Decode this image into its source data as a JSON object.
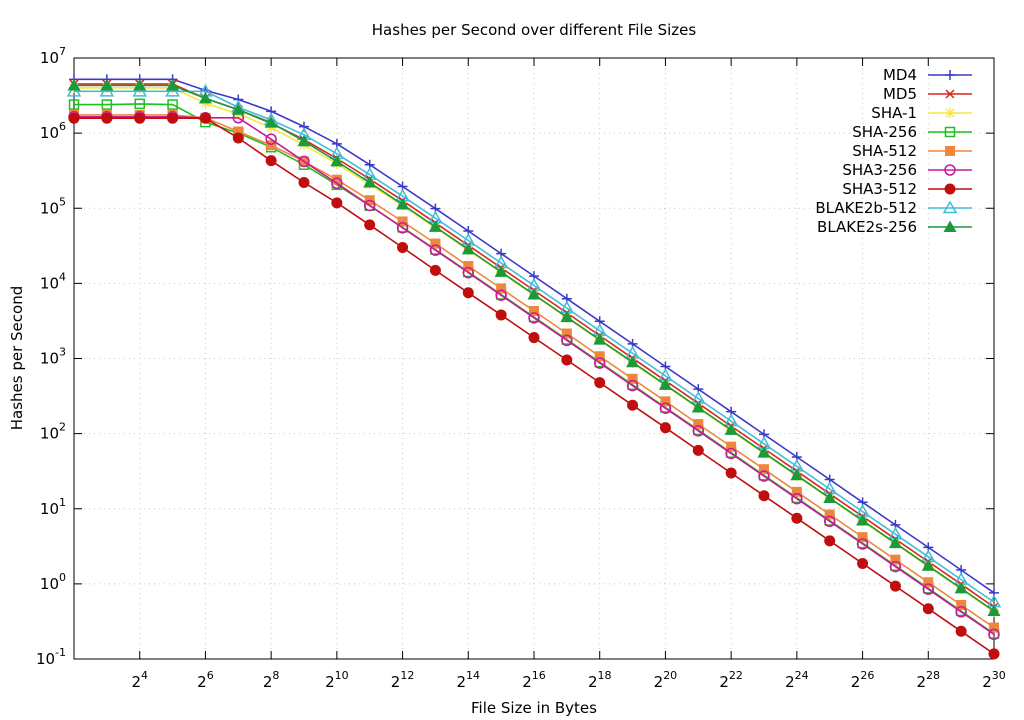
{
  "chart_data": {
    "type": "line",
    "title": "Hashes per Second over different File Sizes",
    "xlabel": "File Size in Bytes",
    "ylabel": "Hashes per Second",
    "x_scale": "log2",
    "y_scale": "log10",
    "x": [
      4,
      8,
      16,
      32,
      64,
      128,
      256,
      512,
      1024,
      2048,
      4096,
      8192,
      16384,
      32768,
      65536,
      131072,
      262144,
      524288,
      1048576,
      2097152,
      4194304,
      8388608,
      16777216,
      33554432,
      67108864,
      134217728,
      268435456,
      536870912,
      1073741824
    ],
    "xlim": [
      4,
      1073741824
    ],
    "ylim": [
      0.1,
      10000000
    ],
    "x_ticks": [
      {
        "value": 16,
        "base": "2",
        "exp": "4"
      },
      {
        "value": 64,
        "base": "2",
        "exp": "6"
      },
      {
        "value": 256,
        "base": "2",
        "exp": "8"
      },
      {
        "value": 1024,
        "base": "2",
        "exp": "10"
      },
      {
        "value": 4096,
        "base": "2",
        "exp": "12"
      },
      {
        "value": 16384,
        "base": "2",
        "exp": "14"
      },
      {
        "value": 65536,
        "base": "2",
        "exp": "16"
      },
      {
        "value": 262144,
        "base": "2",
        "exp": "18"
      },
      {
        "value": 1048576,
        "base": "2",
        "exp": "20"
      },
      {
        "value": 4194304,
        "base": "2",
        "exp": "22"
      },
      {
        "value": 16777216,
        "base": "2",
        "exp": "24"
      },
      {
        "value": 67108864,
        "base": "2",
        "exp": "26"
      },
      {
        "value": 268435456,
        "base": "2",
        "exp": "28"
      },
      {
        "value": 1073741824,
        "base": "2",
        "exp": "30"
      }
    ],
    "y_ticks": [
      {
        "value": 10000000,
        "base": "10",
        "exp": "7"
      },
      {
        "value": 1000000,
        "base": "10",
        "exp": "6"
      },
      {
        "value": 100000,
        "base": "10",
        "exp": "5"
      },
      {
        "value": 10000,
        "base": "10",
        "exp": "4"
      },
      {
        "value": 1000,
        "base": "10",
        "exp": "3"
      },
      {
        "value": 100,
        "base": "10",
        "exp": "2"
      },
      {
        "value": 10,
        "base": "10",
        "exp": "1"
      },
      {
        "value": 1,
        "base": "10",
        "exp": "0"
      },
      {
        "value": 0.1,
        "base": "10",
        "exp": "-1"
      }
    ],
    "grid": true,
    "legend_position": "top-right",
    "series": [
      {
        "name": "MD4",
        "color": "#3a3ac8",
        "marker": "plus",
        "values": [
          5200000,
          5200000,
          5200000,
          5200000,
          3700000,
          2800000,
          1950000,
          1220000,
          720000,
          380000,
          195000,
          99000,
          49800,
          24900,
          12500,
          6250,
          3130,
          1565,
          783,
          391,
          196,
          97.8,
          48.9,
          24.5,
          12.2,
          6.1,
          3.06,
          1.53,
          0.76
        ]
      },
      {
        "name": "MD5",
        "color": "#d9251c",
        "marker": "cross",
        "values": [
          4500000,
          4500000,
          4500000,
          4500000,
          2900000,
          2050000,
          1350000,
          820000,
          460000,
          245000,
          126000,
          63800,
          32100,
          16100,
          8070,
          4040,
          2020,
          1010,
          506,
          253,
          126,
          63.2,
          31.6,
          15.8,
          7.9,
          3.95,
          1.98,
          0.99,
          0.49
        ]
      },
      {
        "name": "SHA-1",
        "color": "#f5e642",
        "marker": "star",
        "values": [
          4000000,
          4000000,
          4000000,
          4000000,
          2500000,
          1800000,
          1180000,
          700000,
          390000,
          208000,
          108000,
          54900,
          27700,
          13900,
          6950,
          3480,
          1740,
          870,
          435,
          218,
          109,
          54.4,
          27.2,
          13.6,
          6.8,
          3.4,
          1.7,
          0.85,
          0.425
        ]
      },
      {
        "name": "SHA-256",
        "color": "#1fbf1f",
        "marker": "square-open",
        "values": [
          2400000,
          2400000,
          2450000,
          2400000,
          1400000,
          1000000,
          650000,
          380000,
          205000,
          108000,
          55600,
          28200,
          14200,
          7110,
          3570,
          1790,
          893,
          447,
          223,
          112,
          55.8,
          27.9,
          13.95,
          6.98,
          3.49,
          1.745,
          0.872,
          0.436,
          0.218
        ]
      },
      {
        "name": "SHA-512",
        "color": "#f0863c",
        "marker": "square-filled",
        "values": [
          1750000,
          1750000,
          1750000,
          1750000,
          1600000,
          1050000,
          690000,
          420000,
          240000,
          128000,
          66700,
          33900,
          17000,
          8560,
          4290,
          2150,
          1070,
          537,
          269,
          134,
          67.1,
          33.6,
          16.8,
          8.39,
          4.19,
          2.1,
          1.05,
          0.524,
          0.262
        ]
      },
      {
        "name": "SHA3-256",
        "color": "#c8199a",
        "marker": "circle-open",
        "values": [
          1650000,
          1650000,
          1650000,
          1650000,
          1600000,
          1600000,
          830000,
          420000,
          215000,
          109000,
          55000,
          27700,
          13900,
          6950,
          3480,
          1740,
          870,
          435,
          218,
          109,
          54.4,
          27.2,
          13.6,
          6.8,
          3.4,
          1.7,
          0.85,
          0.425,
          0.213
        ]
      },
      {
        "name": "SHA3-512",
        "color": "#c00d0d",
        "marker": "circle-filled",
        "values": [
          1580000,
          1580000,
          1580000,
          1580000,
          1580000,
          860000,
          430000,
          220000,
          118000,
          60000,
          30000,
          14900,
          7500,
          3800,
          1900,
          955,
          478,
          239,
          120,
          59.8,
          29.9,
          14.9,
          7.48,
          3.74,
          1.87,
          0.935,
          0.467,
          0.234,
          0.117
        ]
      },
      {
        "name": "BLAKE2b-512",
        "color": "#44bcd8",
        "marker": "triangle-open",
        "values": [
          3600000,
          3600000,
          3600000,
          3600000,
          3600000,
          2200000,
          1500000,
          950000,
          530000,
          280000,
          145000,
          73700,
          37200,
          18700,
          9360,
          4690,
          2340,
          1170,
          586,
          293,
          147,
          73.3,
          36.6,
          18.3,
          9.16,
          4.58,
          2.29,
          1.14,
          0.572
        ]
      },
      {
        "name": "BLAKE2s-256",
        "color": "#1a9a3c",
        "marker": "triangle-filled",
        "values": [
          4300000,
          4300000,
          4300000,
          4300000,
          2900000,
          2050000,
          1380000,
          780000,
          420000,
          220000,
          112000,
          56500,
          28400,
          14200,
          7120,
          3560,
          1780,
          892,
          446,
          223,
          112,
          55.8,
          27.9,
          13.9,
          6.97,
          3.49,
          1.74,
          0.87,
          0.435
        ]
      }
    ]
  }
}
